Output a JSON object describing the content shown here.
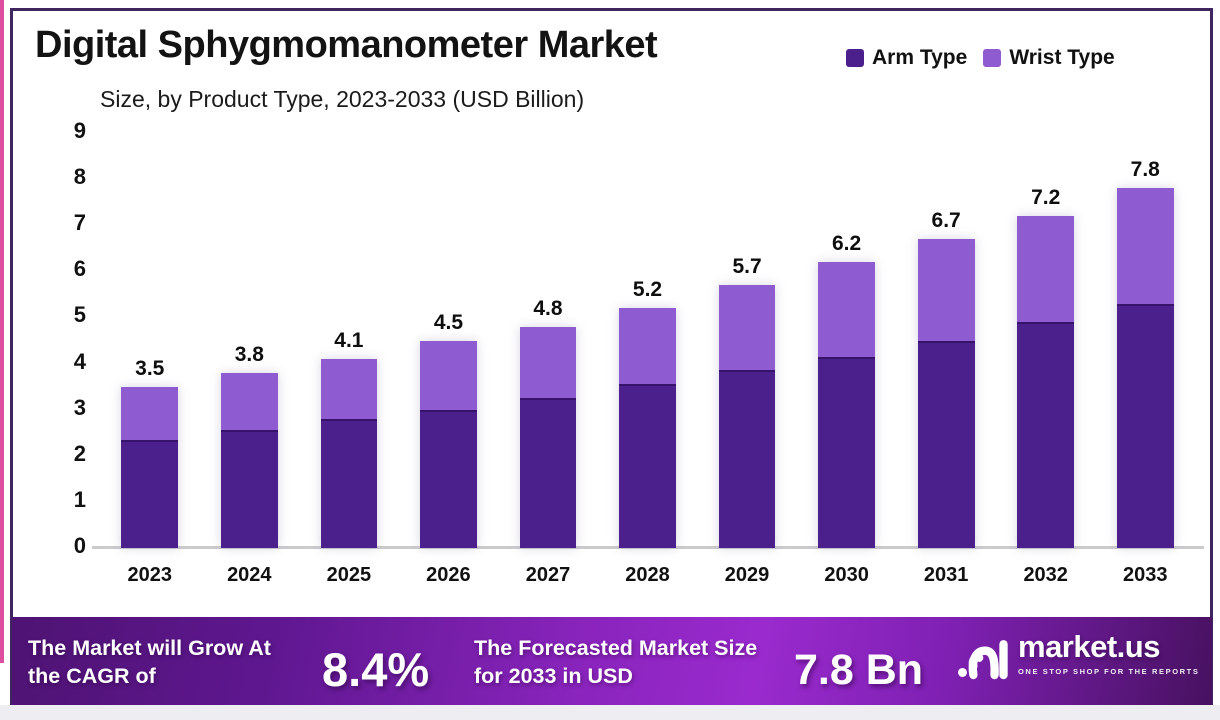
{
  "header": {
    "title": "Digital Sphygmomanometer Market",
    "subtitle": "Size, by Product Type, 2023-2033 (USD Billion)"
  },
  "legend": {
    "items": [
      {
        "label": "Arm Type",
        "color": "#4b1f8c"
      },
      {
        "label": "Wrist Type",
        "color": "#8f5bd1"
      }
    ]
  },
  "chart_data": {
    "type": "bar",
    "stacked": true,
    "title": "Digital Sphygmomanometer Market Size, by Product Type, 2023-2033 (USD Billion)",
    "categories": [
      "2023",
      "2024",
      "2025",
      "2026",
      "2027",
      "2028",
      "2029",
      "2030",
      "2031",
      "2032",
      "2033"
    ],
    "series": [
      {
        "name": "Arm Type",
        "color": "#4b1f8c",
        "values": [
          2.35,
          2.55,
          2.8,
          3.0,
          3.25,
          3.55,
          3.85,
          4.15,
          4.5,
          4.9,
          5.3
        ]
      },
      {
        "name": "Wrist Type",
        "color": "#8f5bd1",
        "values": [
          1.15,
          1.25,
          1.3,
          1.5,
          1.55,
          1.65,
          1.85,
          2.05,
          2.2,
          2.3,
          2.5
        ]
      }
    ],
    "totals": [
      3.5,
      3.8,
      4.1,
      4.5,
      4.8,
      5.2,
      5.7,
      6.2,
      6.7,
      7.2,
      7.8
    ],
    "total_labels": [
      "3.5",
      "3.8",
      "4.1",
      "4.5",
      "4.8",
      "5.2",
      "5.7",
      "6.2",
      "6.7",
      "7.2",
      "7.8"
    ],
    "xlabel": "",
    "ylabel": "",
    "ylim": [
      0,
      9
    ],
    "yticks": [
      0,
      1,
      2,
      3,
      4,
      5,
      6,
      7,
      8,
      9
    ],
    "grid": false,
    "legend_position": "top-right"
  },
  "banner": {
    "cagr_label": "The Market will Grow At the CAGR of",
    "cagr_value": "8.4%",
    "forecast_label": "The Forecasted Market Size for 2033 in USD",
    "forecast_value": "7.8 Bn",
    "brand": "market.us",
    "tagline": "ONE STOP SHOP FOR THE REPORTS"
  },
  "colors": {
    "arm": "#4b1f8c",
    "wrist": "#8f5bd1",
    "card_border": "#40265e",
    "edge_strip": "#dd4f9e",
    "banner_gradient": [
      "#4e1373",
      "#5f1790",
      "#8a24bd",
      "#9a2ace",
      "#7e20b2",
      "#471160"
    ],
    "axis_line": "#cbcbce"
  }
}
